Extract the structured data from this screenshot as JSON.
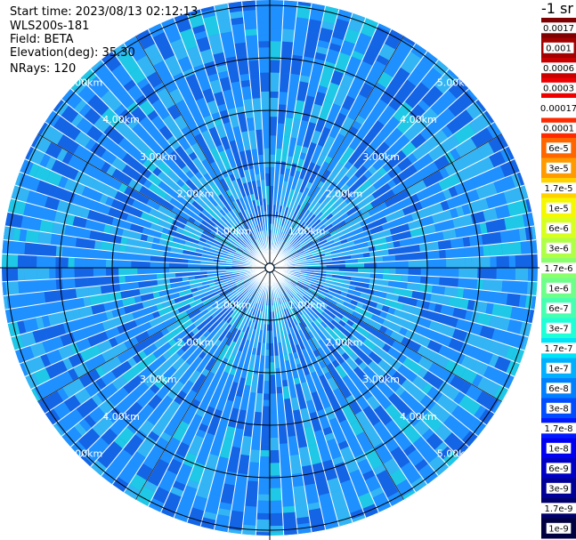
{
  "header": {
    "start_time": "Start time: 2023/08/13 02:12:13",
    "device": "WLS200s-181",
    "field": "Field: BETA",
    "elevation": "Elevation(deg): 35.30",
    "nrays": "NRays: 120"
  },
  "colorbar": {
    "unit": "-1 sr",
    "labels": [
      "0.0017",
      "0.001",
      "0.0006",
      "0.0003",
      "0.00017",
      "0.0001",
      "6e-5",
      "3e-5",
      "1.7e-5",
      "1e-5",
      "6e-6",
      "3e-6",
      "1.7e-6",
      "1e-6",
      "6e-7",
      "3e-7",
      "1.7e-7",
      "1e-7",
      "6e-8",
      "3e-8",
      "1.7e-8",
      "1e-8",
      "6e-9",
      "3e-9",
      "1.7e-9",
      "1e-9"
    ],
    "colors": [
      "#7f0000",
      "#a30000",
      "#c80000",
      "#ee0000",
      "#ffffff",
      "#ff2a00",
      "#ff6600",
      "#ff9a00",
      "#ffd200",
      "#f4f802",
      "#d7ff1f",
      "#b0ff47",
      "#8aff6d",
      "#6dff8a",
      "#47ffb0",
      "#1fffd7",
      "#00e4f8",
      "#00b0ff",
      "#0080ff",
      "#004cff",
      "#0018ff",
      "#0000f1",
      "#0000c4",
      "#000096",
      "#00006b",
      "#000040"
    ]
  },
  "chart_data": {
    "type": "heatmap",
    "projection": "polar PPI",
    "rays": 120,
    "range_rings_km": [
      1,
      2,
      3,
      4,
      5
    ],
    "ring_labels": [
      "1.00km",
      "2.00km",
      "3.00km",
      "4.00km",
      "5.00km"
    ],
    "max_range_km": 5.1,
    "value": "BETA",
    "typical_value_range": [
      3e-08,
      1e-07
    ],
    "dominant_colors": [
      "#1e90ff",
      "#1464e6",
      "#33b5f5",
      "#1ec8e6"
    ]
  }
}
